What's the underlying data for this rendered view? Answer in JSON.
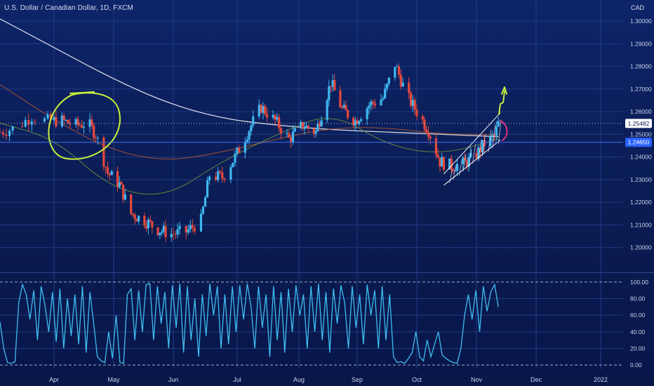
{
  "header": {
    "title": "U.S. Dollar / Canadian Dollar, 1D, FXCM",
    "currency": "CAD"
  },
  "colors": {
    "background_top": "#0d2469",
    "grid": "#1f3c86",
    "up_candle": "#3fb7f0",
    "down_candle": "#e5483c",
    "sma_long": "#e8e8f0",
    "sma_mid": "#b4552f",
    "sma_short": "#6f8f3a",
    "drawing_green": "#c7ef3a",
    "drawing_pink": "#e0317a",
    "channel_lines": "#ffffff",
    "oscillator": "#3fbef0",
    "price_tag_current": "#ffffff",
    "price_tag_blue": "#2962ff"
  },
  "chart_data": [
    {
      "type": "candlestick",
      "title": "U.S. Dollar / Canadian Dollar, 1D, FXCM",
      "x_ticks": [
        "Apr",
        "May",
        "Jun",
        "Jul",
        "Aug",
        "Sep",
        "Oct",
        "Nov",
        "Dec",
        "2022"
      ],
      "y_ticks": [
        "1.20000",
        "1.21000",
        "1.22000",
        "1.23000",
        "1.24000",
        "1.25000",
        "1.26000",
        "1.27000",
        "1.28000",
        "1.29000",
        "1.30000"
      ],
      "ylim": [
        1.19,
        1.305
      ],
      "y_unit": "CAD",
      "price_labels": [
        {
          "value": 1.25482,
          "text": "1.25482",
          "style": "current"
        },
        {
          "value": 1.2465,
          "text": "1.24650",
          "style": "highlight"
        }
      ],
      "close_path": [
        [
          "2021-03-15",
          1.251
        ],
        [
          "2021-03-20",
          1.253
        ],
        [
          "2021-03-25",
          1.258
        ],
        [
          "2021-03-29",
          1.256
        ],
        [
          "2021-04-05",
          1.256
        ],
        [
          "2021-04-12",
          1.254
        ],
        [
          "2021-04-18",
          1.255
        ],
        [
          "2021-04-22",
          1.25
        ],
        [
          "2021-04-28",
          1.233
        ],
        [
          "2021-05-04",
          1.228
        ],
        [
          "2021-05-10",
          1.215
        ],
        [
          "2021-05-17",
          1.212
        ],
        [
          "2021-05-24",
          1.208
        ],
        [
          "2021-05-31",
          1.206
        ],
        [
          "2021-06-07",
          1.207
        ],
        [
          "2021-06-14",
          1.212
        ],
        [
          "2021-06-18",
          1.232
        ],
        [
          "2021-06-24",
          1.231
        ],
        [
          "2021-06-30",
          1.24
        ],
        [
          "2021-07-08",
          1.254
        ],
        [
          "2021-07-13",
          1.262
        ],
        [
          "2021-07-20",
          1.256
        ],
        [
          "2021-07-27",
          1.248
        ],
        [
          "2021-08-03",
          1.254
        ],
        [
          "2021-08-10",
          1.251
        ],
        [
          "2021-08-18",
          1.273
        ],
        [
          "2021-08-24",
          1.261
        ],
        [
          "2021-08-31",
          1.256
        ],
        [
          "2021-09-07",
          1.263
        ],
        [
          "2021-09-14",
          1.266
        ],
        [
          "2021-09-20",
          1.281
        ],
        [
          "2021-09-26",
          1.267
        ],
        [
          "2021-10-01",
          1.26
        ],
        [
          "2021-10-07",
          1.252
        ],
        [
          "2021-10-13",
          1.238
        ],
        [
          "2021-10-19",
          1.236
        ],
        [
          "2021-10-25",
          1.237
        ],
        [
          "2021-10-31",
          1.24
        ],
        [
          "2021-11-05",
          1.246
        ],
        [
          "2021-11-10",
          1.249
        ],
        [
          "2021-11-12",
          1.2548
        ]
      ],
      "moving_averages": [
        {
          "color": "#e8e8f0",
          "values": [
            1.301,
            1.288,
            1.275,
            1.264,
            1.257,
            1.254,
            1.252,
            1.251,
            1.25,
            1.249
          ]
        },
        {
          "color": "#b4552f",
          "values": [
            1.272,
            1.256,
            1.243,
            1.238,
            1.242,
            1.248,
            1.253,
            1.253,
            1.25,
            1.25
          ]
        },
        {
          "color": "#6f8f3a",
          "values": [
            1.255,
            1.248,
            1.226,
            1.222,
            1.238,
            1.25,
            1.26,
            1.245,
            1.241,
            1.248
          ]
        }
      ]
    },
    {
      "type": "line",
      "title": "",
      "x_ticks": [
        "Apr",
        "May",
        "Jun",
        "Jul",
        "Aug",
        "Sep",
        "Oct",
        "Nov",
        "Dec",
        "2022"
      ],
      "y_ticks": [
        "0.00",
        "20.00",
        "40.00",
        "60.00",
        "80.00",
        "100.00"
      ],
      "ylim": [
        -5,
        105
      ],
      "reference_lines": [
        0,
        50,
        100
      ],
      "series": [
        {
          "values": [
            52,
            20,
            3,
            2,
            4,
            75,
            97,
            85,
            55,
            90,
            30,
            95,
            72,
            40,
            88,
            28,
            92,
            20,
            80,
            35,
            85,
            25,
            95,
            15,
            88,
            50,
            10,
            5,
            3,
            40,
            8,
            60,
            3,
            2,
            85,
            92,
            30,
            90,
            40,
            97,
            98,
            30,
            95,
            50,
            88,
            20,
            96,
            45,
            98,
            15,
            95,
            30,
            80,
            10,
            85,
            35,
            98,
            60,
            95,
            20,
            85,
            25,
            95,
            40,
            96,
            55,
            98,
            70,
            20,
            95,
            45,
            85,
            10,
            95,
            30,
            88,
            15,
            92,
            40,
            96,
            60,
            85,
            20,
            95,
            40,
            98,
            30,
            88,
            15,
            92,
            50,
            96,
            75,
            20,
            95,
            45,
            85,
            25,
            97,
            60,
            90,
            20,
            95,
            30,
            85,
            10,
            3,
            4,
            2,
            8,
            15,
            40,
            10,
            5,
            30,
            10,
            25,
            40,
            12,
            8,
            5,
            3,
            2,
            20,
            60,
            85,
            55,
            90,
            40,
            95,
            65,
            88,
            97,
            70
          ]
        }
      ]
    }
  ]
}
